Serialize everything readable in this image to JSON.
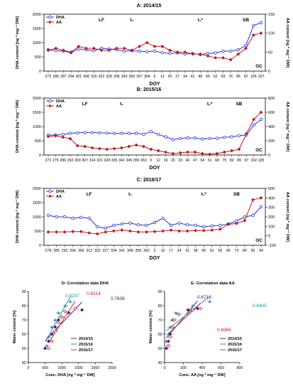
{
  "chart_data": [
    {
      "type": "line",
      "title": "A: 2014/15",
      "xlabel": "DOY",
      "ylabel": "DHA content [ng * mg⁻¹ DW]",
      "ylabel2": "AA content [ng * mg⁻¹ DW]",
      "categories": [
        "273",
        "280",
        "287",
        "294",
        "301",
        "308",
        "315",
        "322",
        "329",
        "336",
        "343",
        "350",
        "357",
        "364",
        "6",
        "13",
        "20",
        "27",
        "34",
        "41",
        "48",
        "55",
        "62",
        "69",
        "76",
        "86",
        "92",
        "105",
        "107"
      ],
      "ylim": [
        0,
        2000
      ],
      "yticks": [
        0,
        500,
        1000,
        1500,
        2000
      ],
      "ylim2": [
        0,
        150
      ],
      "yticks2": [
        0,
        50,
        100,
        150
      ],
      "phases": [
        {
          "label": "LF",
          "index": 7
        },
        {
          "label": "t₁",
          "index": 11
        },
        {
          "label": "t₁*",
          "index": 20
        },
        {
          "label": "SB",
          "index": 26
        }
      ],
      "corner_label": "OC",
      "series": [
        {
          "name": "DHA",
          "axis": "left",
          "color": "#1f35d9",
          "marker": "circle",
          "values": [
            750,
            720,
            700,
            650,
            780,
            750,
            720,
            800,
            780,
            750,
            700,
            720,
            700,
            680,
            700,
            650,
            620,
            640,
            600,
            620,
            580,
            620,
            640,
            700,
            700,
            750,
            900,
            1600,
            1700
          ]
        },
        {
          "name": "AA",
          "axis": "right",
          "color": "#c0191f",
          "marker": "diamond",
          "values": [
            55,
            60,
            55,
            50,
            65,
            60,
            60,
            55,
            55,
            60,
            60,
            55,
            65,
            75,
            65,
            65,
            55,
            50,
            50,
            45,
            45,
            40,
            35,
            35,
            30,
            45,
            60,
            95,
            100
          ]
        }
      ]
    },
    {
      "type": "line",
      "title": "B: 2015/16",
      "xlabel": "DOY",
      "ylabel": "DHA content [ng * mg⁻¹ DW]",
      "ylabel2": "AA content [ng * mg⁻¹ DW]",
      "categories": [
        "272",
        "279",
        "286",
        "293",
        "300",
        "307",
        "314",
        "321",
        "328",
        "335",
        "342",
        "349",
        "356",
        "363",
        "5",
        "12",
        "19",
        "26",
        "33",
        "40",
        "47",
        "54",
        "61",
        "68",
        "75",
        "82",
        "89",
        "97",
        "102",
        "105"
      ],
      "ylim": [
        0,
        2000
      ],
      "yticks": [
        0,
        500,
        1000,
        1500,
        2000
      ],
      "ylim2": [
        0,
        800
      ],
      "yticks2": [
        0,
        200,
        400,
        600,
        800
      ],
      "phases": [
        {
          "label": "LF",
          "index": 5
        },
        {
          "label": "t₁",
          "index": 10
        },
        {
          "label": "t₁*",
          "index": 22
        },
        {
          "label": "SB",
          "index": 26
        }
      ],
      "corner_label": "OC",
      "series": [
        {
          "name": "DHA",
          "axis": "left",
          "color": "#1f35d9",
          "marker": "circle",
          "values": [
            700,
            700,
            720,
            760,
            780,
            790,
            790,
            780,
            770,
            760,
            760,
            760,
            760,
            730,
            820,
            720,
            640,
            540,
            580,
            600,
            600,
            560,
            580,
            590,
            620,
            640,
            680,
            700,
            1050,
            1250
          ]
        },
        {
          "name": "AA",
          "axis": "right",
          "color": "#c0191f",
          "marker": "diamond",
          "values": [
            260,
            270,
            250,
            230,
            130,
            120,
            100,
            90,
            80,
            90,
            100,
            120,
            140,
            120,
            80,
            60,
            40,
            20,
            30,
            40,
            40,
            20,
            10,
            20,
            40,
            60,
            80,
            300,
            500,
            600
          ]
        }
      ]
    },
    {
      "type": "line",
      "title": "C: 2016/17",
      "xlabel": "DOY",
      "ylabel": "DHA content [ng * mg⁻¹ DW]",
      "ylabel2": "AA content [ng * mg⁻¹ DW]",
      "categories": [
        "278",
        "285",
        "292",
        "299",
        "306",
        "313",
        "320",
        "327",
        "334",
        "341",
        "348",
        "355",
        "362",
        "3",
        "10",
        "17",
        "24",
        "31",
        "38",
        "45",
        "52",
        "59",
        "66",
        "73",
        "80",
        "90",
        "94"
      ],
      "ylim": [
        0,
        2000
      ],
      "yticks": [
        0,
        500,
        1000,
        1500,
        2000
      ],
      "ylim2": [
        -100,
        500
      ],
      "yticks2": [
        -100,
        0,
        100,
        200,
        300,
        400,
        500
      ],
      "phases": [
        {
          "label": "LF",
          "index": 5
        },
        {
          "label": "t₁",
          "index": 10
        },
        {
          "label": "t₁*",
          "index": 19
        },
        {
          "label": "SB",
          "index": 23
        }
      ],
      "corner_label": "OC",
      "series": [
        {
          "name": "DHA",
          "axis": "left",
          "color": "#1f35d9",
          "marker": "circle",
          "values": [
            1050,
            1000,
            1000,
            950,
            980,
            950,
            650,
            600,
            700,
            750,
            780,
            720,
            700,
            800,
            950,
            700,
            780,
            720,
            700,
            650,
            680,
            700,
            750,
            850,
            1000,
            1050,
            1350
          ]
        },
        {
          "name": "AA",
          "axis": "right",
          "color": "#c0191f",
          "marker": "diamond",
          "values": [
            40,
            40,
            40,
            45,
            45,
            30,
            20,
            40,
            50,
            60,
            50,
            40,
            40,
            45,
            50,
            60,
            50,
            50,
            55,
            55,
            60,
            70,
            120,
            130,
            160,
            380,
            400
          ]
        }
      ]
    },
    {
      "type": "scatter",
      "title": "D: Correlation data DHA",
      "xlabel": "Conc. DHA [ng * mg⁻¹ DW]",
      "ylabel": "Water content [%]",
      "xlim": [
        0,
        2500
      ],
      "xticks": [
        0,
        500,
        1000,
        1500,
        2000,
        2500
      ],
      "ylim": [
        40,
        90
      ],
      "yticks": [
        40,
        50,
        60,
        70,
        80,
        90
      ],
      "annotations": [
        "0.8287",
        "0.8314",
        "0.7836"
      ],
      "series": [
        {
          "name": "2014/15",
          "color": "#4b0a6b",
          "points": [
            [
              500,
              50
            ],
            [
              600,
              55
            ],
            [
              700,
              60
            ],
            [
              800,
              65
            ],
            [
              900,
              70
            ],
            [
              1000,
              72
            ],
            [
              1200,
              75
            ],
            [
              1600,
              77
            ]
          ]
        },
        {
          "name": "2015/16",
          "color": "#1a8fa0",
          "points": [
            [
              550,
              52
            ],
            [
              600,
              58
            ],
            [
              700,
              65
            ],
            [
              800,
              70
            ],
            [
              900,
              75
            ],
            [
              1100,
              80
            ],
            [
              1250,
              83
            ]
          ]
        },
        {
          "name": "2016/17",
          "color": "#c0191f",
          "points": [
            [
              600,
              50
            ],
            [
              700,
              55
            ],
            [
              800,
              62
            ],
            [
              900,
              68
            ],
            [
              1000,
              72
            ],
            [
              1100,
              76
            ],
            [
              1400,
              78
            ]
          ]
        }
      ]
    },
    {
      "type": "scatter",
      "title": "E: Correlation data AA",
      "xlabel": "Conc. AA [ng * mg⁻¹ DW]",
      "ylabel": "Water content [%]",
      "xlim": [
        0,
        800
      ],
      "xticks": [
        0,
        200,
        400,
        600,
        800
      ],
      "ylim": [
        40,
        90
      ],
      "yticks": [
        40,
        50,
        60,
        70,
        80,
        90
      ],
      "annotations": [
        "0.6713",
        "0.8405",
        "0.6965"
      ],
      "series": [
        {
          "name": "2014/15",
          "color": "#4b0a6b",
          "points": [
            [
              20,
              50
            ],
            [
              40,
              55
            ],
            [
              60,
              60
            ],
            [
              80,
              65
            ],
            [
              100,
              70
            ],
            [
              150,
              74
            ],
            [
              250,
              77
            ],
            [
              350,
              78
            ]
          ]
        },
        {
          "name": "2015/16",
          "color": "#1a8fa0",
          "points": [
            [
              20,
              55
            ],
            [
              40,
              60
            ],
            [
              60,
              65
            ],
            [
              80,
              70
            ],
            [
              120,
              75
            ],
            [
              300,
              80
            ],
            [
              480,
              83
            ]
          ]
        },
        {
          "name": "2016/17",
          "color": "#c0191f",
          "points": [
            [
              40,
              52
            ],
            [
              60,
              58
            ],
            [
              80,
              65
            ],
            [
              100,
              70
            ],
            [
              150,
              74
            ],
            [
              300,
              77
            ],
            [
              380,
              78
            ]
          ]
        }
      ]
    }
  ]
}
